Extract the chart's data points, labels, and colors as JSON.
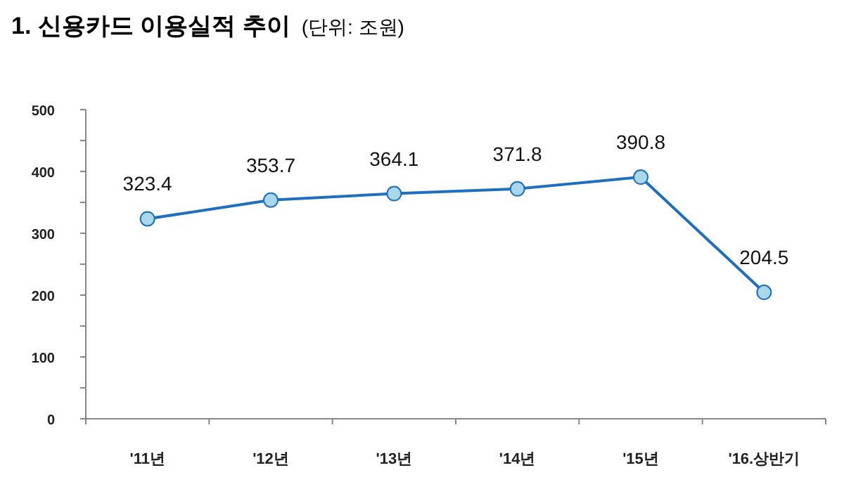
{
  "chart_data": {
    "type": "line",
    "title": "1. 신용카드 이용실적 추이",
    "subtitle": "(단위: 조원)",
    "categories": [
      "'11년",
      "'12년",
      "'13년",
      "'14년",
      "'15년",
      "'16.상반기"
    ],
    "series": [
      {
        "color": "#1f6fbf",
        "values": [
          323.4,
          353.7,
          364.1,
          371.8,
          390.8,
          204.5
        ]
      }
    ],
    "ylim": [
      0,
      500
    ],
    "yticks": [
      0,
      {
        "value": 50,
        "label": null
      },
      100,
      {
        "value": 150,
        "label": null
      },
      200,
      {
        "value": 250,
        "label": null
      },
      300,
      {
        "value": 350,
        "label": null
      },
      400,
      {
        "value": 450,
        "label": null
      },
      500
    ],
    "marker": "circle",
    "data_labels": true,
    "grid": false
  }
}
